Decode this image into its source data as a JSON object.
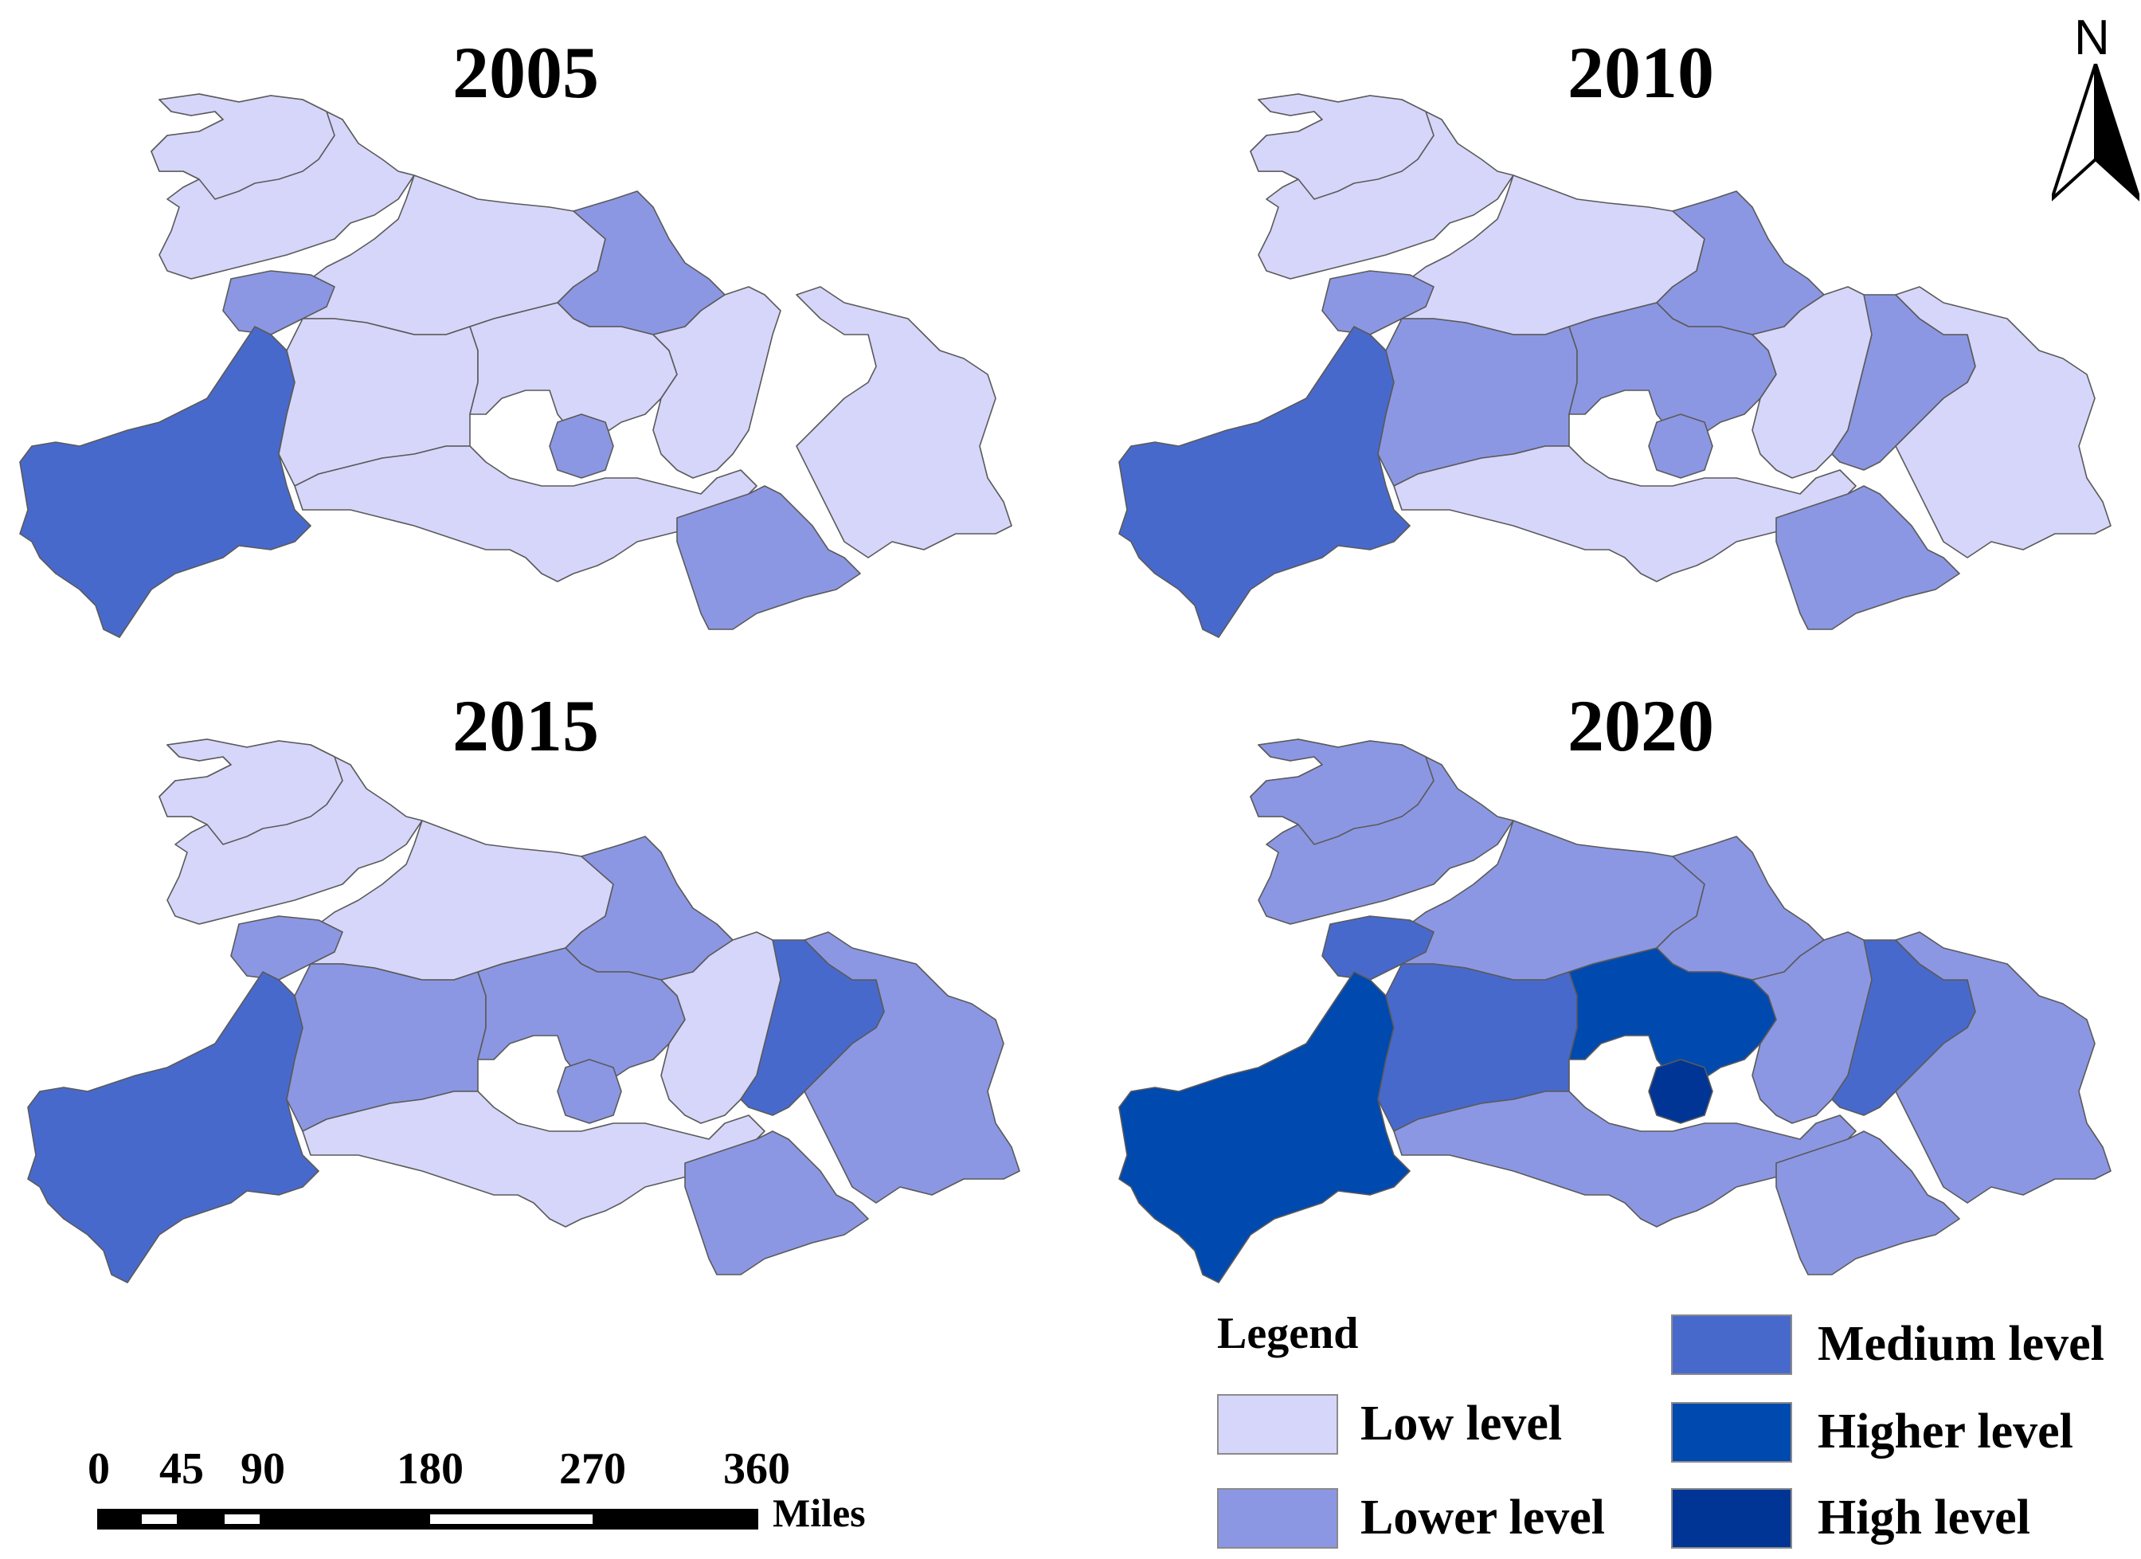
{
  "map_titles": [
    "2005",
    "2010",
    "2015",
    "2020"
  ],
  "north_label": "N",
  "legend": {
    "title": "Legend",
    "items": [
      {
        "label": "Low level",
        "color": "#d6d6fb"
      },
      {
        "label": "Lower level",
        "color": "#8c97e3"
      },
      {
        "label": "Medium level",
        "color": "#4869cc"
      },
      {
        "label": "Higher level",
        "color": "#0049af"
      },
      {
        "label": "High level",
        "color": "#003595"
      }
    ]
  },
  "scale_bar": {
    "ticks": [
      "0",
      "45",
      "90",
      "180",
      "270",
      "360"
    ],
    "unit": "Miles"
  },
  "region_levels": {
    "2005": {
      "west": 2,
      "north": 0,
      "northwest": 0,
      "northmid": 0,
      "northeast": 1,
      "westbump": 1,
      "center": 0,
      "centersmall": 1,
      "central2": 0,
      "eastcentral": 0,
      "east": 0,
      "south": 0,
      "southeast": 1
    },
    "2010": {
      "west": 2,
      "north": 0,
      "northwest": 0,
      "northmid": 0,
      "northeast": 1,
      "westbump": 1,
      "center": 1,
      "centersmall": 1,
      "central2": 1,
      "eastcentral": 0,
      "east": 0,
      "eastmid": 1,
      "south": 0,
      "southeast": 1
    },
    "2015": {
      "west": 2,
      "north": 0,
      "northwest": 0,
      "northmid": 0,
      "northeast": 1,
      "westbump": 1,
      "center": 1,
      "centersmall": 1,
      "central2": 1,
      "eastcentral": 0,
      "east": 1,
      "eastmid": 2,
      "south": 0,
      "southeast": 1
    },
    "2020": {
      "west": 3,
      "north": 1,
      "northwest": 1,
      "northmid": 1,
      "northeast": 1,
      "westbump": 2,
      "center": 2,
      "centersmall": 4,
      "central2": 3,
      "eastcentral": 1,
      "east": 1,
      "eastmid": 2,
      "south": 1,
      "southeast": 1
    }
  }
}
